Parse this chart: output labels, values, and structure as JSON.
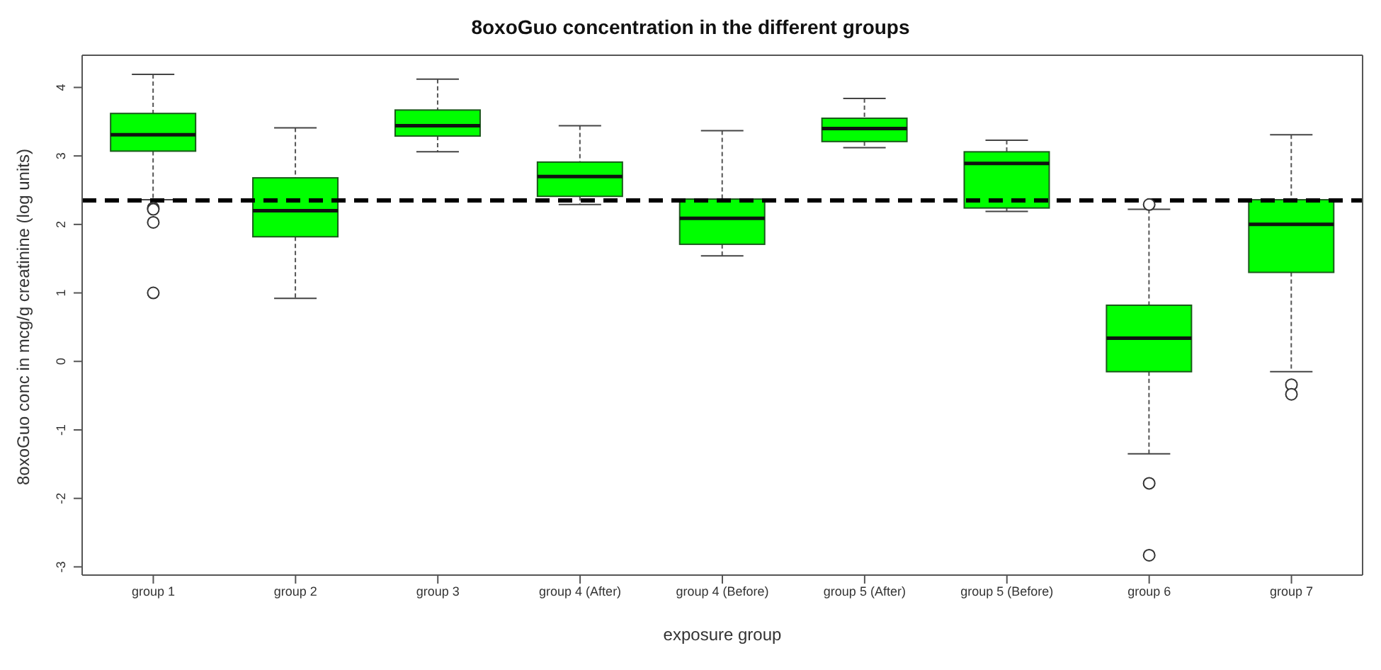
{
  "chart_data": {
    "type": "box",
    "title": "8oxoGuo concentration in the different groups",
    "xlabel": "exposure group",
    "ylabel": "8oxoGuo conc in mcg/g creatinine (log units)",
    "categories": [
      "group 1",
      "group 2",
      "group 3",
      "group 4 (After)",
      "group 4 (Before)",
      "group 5 (After)",
      "group 5 (Before)",
      "group 6",
      "group 7"
    ],
    "color": "#00ff00",
    "boxes": [
      {
        "low": 2.36,
        "q1": 3.07,
        "median": 3.31,
        "q3": 3.62,
        "high": 4.19,
        "outliers": [
          2.24,
          2.22,
          2.03,
          1.0
        ]
      },
      {
        "low": 0.92,
        "q1": 1.82,
        "median": 2.2,
        "q3": 2.68,
        "high": 3.41
      },
      {
        "low": 3.06,
        "q1": 3.29,
        "median": 3.44,
        "q3": 3.67,
        "high": 4.12
      },
      {
        "low": 2.29,
        "q1": 2.41,
        "median": 2.7,
        "q3": 2.91,
        "high": 3.44
      },
      {
        "low": 1.54,
        "q1": 1.71,
        "median": 2.09,
        "q3": 2.37,
        "high": 3.37
      },
      {
        "low": 3.12,
        "q1": 3.21,
        "median": 3.4,
        "q3": 3.55,
        "high": 3.84
      },
      {
        "low": 2.19,
        "q1": 2.24,
        "median": 2.89,
        "q3": 3.06,
        "high": 3.23
      },
      {
        "low": -1.35,
        "q1": -0.15,
        "median": 0.34,
        "q3": 0.82,
        "high": 2.22,
        "outliers": [
          2.29,
          -1.78,
          -2.83
        ]
      },
      {
        "low": -0.15,
        "q1": 1.3,
        "median": 2.0,
        "q3": 2.36,
        "high": 3.31,
        "outliers": [
          -0.34,
          -0.48
        ]
      }
    ],
    "ylim": [
      -3.12,
      4.47
    ],
    "yticks": [
      -3,
      -2,
      -1,
      0,
      1,
      2,
      3,
      4
    ],
    "ref_lines": [
      {
        "axis": "y",
        "value": 2.35,
        "color": "#000000",
        "line_style": "dashed"
      }
    ]
  }
}
